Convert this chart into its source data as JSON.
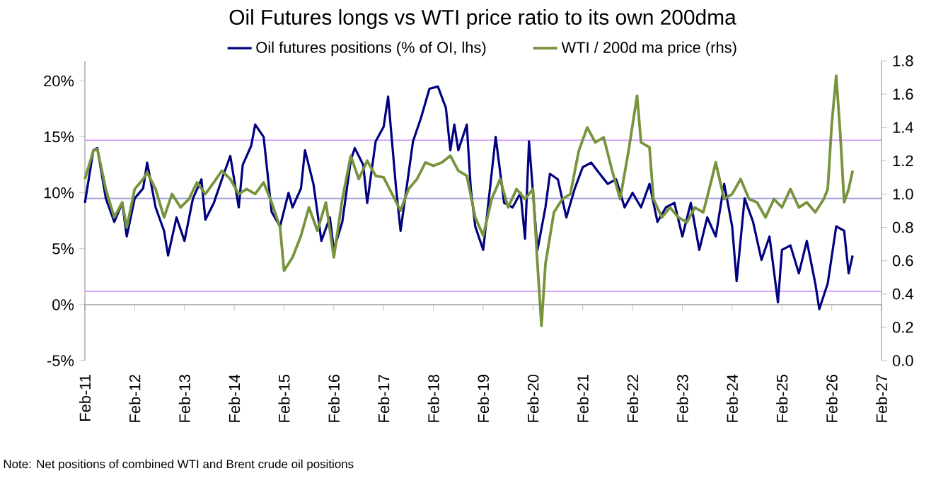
{
  "chart_data": {
    "type": "line",
    "title": "Oil Futures longs vs WTI price ratio to its own 200dma",
    "series": [
      {
        "name": "Oil futures positions (% of OI, lhs)",
        "color": "#000080",
        "x": [
          "2011-02",
          "2011-04",
          "2011-05",
          "2011-07",
          "2011-09",
          "2011-11",
          "2011-12",
          "2012-02",
          "2012-04",
          "2012-05",
          "2012-07",
          "2012-09",
          "2012-10",
          "2012-12",
          "2013-02",
          "2013-04",
          "2013-06",
          "2013-07",
          "2013-09",
          "2013-11",
          "2014-01",
          "2014-03",
          "2014-04",
          "2014-06",
          "2014-07",
          "2014-09",
          "2014-11",
          "2015-01",
          "2015-03",
          "2015-04",
          "2015-06",
          "2015-07",
          "2015-09",
          "2015-11",
          "2016-01",
          "2016-02",
          "2016-04",
          "2016-06",
          "2016-07",
          "2016-09",
          "2016-10",
          "2016-12",
          "2017-02",
          "2017-03",
          "2017-05",
          "2017-06",
          "2017-08",
          "2017-09",
          "2017-11",
          "2018-01",
          "2018-03",
          "2018-05",
          "2018-06",
          "2018-07",
          "2018-08",
          "2018-10",
          "2018-11",
          "2018-12",
          "2019-02",
          "2019-05",
          "2019-07",
          "2019-09",
          "2019-11",
          "2019-12",
          "2020-01",
          "2020-03",
          "2020-05",
          "2020-06",
          "2020-08",
          "2020-10",
          "2020-12",
          "2021-02",
          "2021-04",
          "2021-06",
          "2021-08",
          "2021-10",
          "2021-12",
          "2022-02",
          "2022-04",
          "2022-06",
          "2022-08",
          "2022-10",
          "2022-12",
          "2023-02",
          "2023-04",
          "2023-06",
          "2023-08",
          "2023-10",
          "2023-12",
          "2024-02",
          "2024-03",
          "2024-05",
          "2024-07",
          "2024-09",
          "2024-11",
          "2025-01",
          "2025-02",
          "2025-04",
          "2025-06",
          "2025-08",
          "2025-10",
          "2025-11",
          "2026-01",
          "2026-03",
          "2026-05",
          "2026-06",
          "2026-07"
        ],
        "values": [
          9.1,
          13.8,
          14,
          9.5,
          7.4,
          9.1,
          6.1,
          9.5,
          10.4,
          12.7,
          8.7,
          6.6,
          4.4,
          7.8,
          5.7,
          9.5,
          11.2,
          7.6,
          9.1,
          11.2,
          13.3,
          8.7,
          12.5,
          14.2,
          16.1,
          15,
          8.3,
          7.0,
          10,
          8.7,
          10.4,
          13.8,
          10.8,
          5.7,
          7.8,
          4.9,
          7.4,
          12.9,
          14,
          12.5,
          9.1,
          14.6,
          15.9,
          18.6,
          10.4,
          6.6,
          11.7,
          14.6,
          16.7,
          19.3,
          19.5,
          17.6,
          13.8,
          16.1,
          13.8,
          16.1,
          10.4,
          7.0,
          4.9,
          15,
          9.1,
          8.7,
          10,
          5.9,
          14.6,
          4.9,
          8.7,
          11.7,
          11.2,
          7.8,
          10.4,
          12.3,
          12.7,
          11.7,
          10.8,
          11.2,
          8.7,
          10,
          8.7,
          10.8,
          7.4,
          8.7,
          9.1,
          6.1,
          9.1,
          4.9,
          7.8,
          6.1,
          10.8,
          7.0,
          2.1,
          9.5,
          7.4,
          4.0,
          6.1,
          0.2,
          4.9,
          5.3,
          2.8,
          5.7,
          1.9,
          -0.4,
          1.9,
          7.0,
          6.6,
          2.8,
          4.4
        ]
      },
      {
        "name": "WTI / 200d ma price (rhs)",
        "color": "#77933c",
        "axis": "y2",
        "x": [
          "2011-02",
          "2011-04",
          "2011-05",
          "2011-07",
          "2011-09",
          "2011-11",
          "2011-12",
          "2012-02",
          "2012-04",
          "2012-05",
          "2012-07",
          "2012-09",
          "2012-11",
          "2013-01",
          "2013-03",
          "2013-05",
          "2013-07",
          "2013-09",
          "2013-11",
          "2014-01",
          "2014-03",
          "2014-05",
          "2014-07",
          "2014-09",
          "2014-11",
          "2015-01",
          "2015-02",
          "2015-04",
          "2015-06",
          "2015-08",
          "2015-10",
          "2015-12",
          "2016-02",
          "2016-04",
          "2016-06",
          "2016-08",
          "2016-10",
          "2016-12",
          "2017-02",
          "2017-04",
          "2017-06",
          "2017-08",
          "2017-10",
          "2017-12",
          "2018-02",
          "2018-04",
          "2018-06",
          "2018-08",
          "2018-10",
          "2018-12",
          "2019-02",
          "2019-04",
          "2019-06",
          "2019-08",
          "2019-10",
          "2019-12",
          "2020-02",
          "2020-03",
          "2020-04",
          "2020-05",
          "2020-07",
          "2020-09",
          "2020-11",
          "2021-01",
          "2021-03",
          "2021-05",
          "2021-07",
          "2021-09",
          "2021-11",
          "2022-01",
          "2022-03",
          "2022-04",
          "2022-06",
          "2022-07",
          "2022-09",
          "2022-11",
          "2023-01",
          "2023-03",
          "2023-05",
          "2023-07",
          "2023-09",
          "2023-10",
          "2023-12",
          "2024-02",
          "2024-04",
          "2024-06",
          "2024-08",
          "2024-10",
          "2024-12",
          "2025-02",
          "2025-04",
          "2025-06",
          "2025-08",
          "2025-10",
          "2025-12",
          "2026-01",
          "2026-02",
          "2026-03",
          "2026-04",
          "2026-05",
          "2026-06",
          "2026-07"
        ],
        "values": [
          1.09,
          1.26,
          1.27,
          1.03,
          0.86,
          0.95,
          0.8,
          1.03,
          1.09,
          1.13,
          1.03,
          0.86,
          1.0,
          0.92,
          0.97,
          1.07,
          1.0,
          1.07,
          1.14,
          1.09,
          1.0,
          1.03,
          1.0,
          1.07,
          0.95,
          0.8,
          0.54,
          0.62,
          0.75,
          0.92,
          0.78,
          0.95,
          0.62,
          0.97,
          1.23,
          1.09,
          1.2,
          1.11,
          1.1,
          1.0,
          0.9,
          1.03,
          1.09,
          1.19,
          1.17,
          1.19,
          1.23,
          1.14,
          1.11,
          0.86,
          0.75,
          0.97,
          1.09,
          0.92,
          1.03,
          0.97,
          1.03,
          0.58,
          0.21,
          0.58,
          0.89,
          0.97,
          1.0,
          1.26,
          1.4,
          1.31,
          1.34,
          1.14,
          0.97,
          1.26,
          1.59,
          1.31,
          1.28,
          0.97,
          0.86,
          0.92,
          0.86,
          0.83,
          0.92,
          0.89,
          1.09,
          1.19,
          0.97,
          1.0,
          1.09,
          0.97,
          0.95,
          0.86,
          0.97,
          0.92,
          1.03,
          0.92,
          0.95,
          0.89,
          0.97,
          1.03,
          1.42,
          1.71,
          1.37,
          0.95,
          1.03,
          1.14
        ]
      }
    ],
    "xlim": [
      "2011-02",
      "2027-02"
    ],
    "xticks": [
      {
        "value": "2011-02",
        "label": "Feb-11"
      },
      {
        "value": "2012-02",
        "label": "Feb-12"
      },
      {
        "value": "2013-02",
        "label": "Feb-13"
      },
      {
        "value": "2014-02",
        "label": "Feb-14"
      },
      {
        "value": "2015-02",
        "label": "Feb-15"
      },
      {
        "value": "2016-02",
        "label": "Feb-16"
      },
      {
        "value": "2017-02",
        "label": "Feb-17"
      },
      {
        "value": "2018-02",
        "label": "Feb-18"
      },
      {
        "value": "2019-02",
        "label": "Feb-19"
      },
      {
        "value": "2020-02",
        "label": "Feb-20"
      },
      {
        "value": "2021-02",
        "label": "Feb-21"
      },
      {
        "value": "2022-02",
        "label": "Feb-22"
      },
      {
        "value": "2023-02",
        "label": "Feb-23"
      },
      {
        "value": "2024-02",
        "label": "Feb-24"
      },
      {
        "value": "2025-02",
        "label": "Feb-25"
      },
      {
        "value": "2026-02",
        "label": "Feb-26"
      },
      {
        "value": "2027-02",
        "label": "Feb-27"
      }
    ],
    "ylim": [
      -5,
      21.8
    ],
    "yticks": [
      {
        "value": -5,
        "label": "-5%"
      },
      {
        "value": 0,
        "label": "0%"
      },
      {
        "value": 5,
        "label": "5%"
      },
      {
        "value": 10,
        "label": "10%"
      },
      {
        "value": 15,
        "label": "15%"
      },
      {
        "value": 20,
        "label": "20%"
      }
    ],
    "y2lim": [
      0,
      1.8
    ],
    "y2ticks": [
      {
        "value": 0,
        "label": "0.0"
      },
      {
        "value": 0.2,
        "label": "0.2"
      },
      {
        "value": 0.4,
        "label": "0.4"
      },
      {
        "value": 0.6,
        "label": "0.6"
      },
      {
        "value": 0.8,
        "label": "0.8"
      },
      {
        "value": 1.0,
        "label": "1.0"
      },
      {
        "value": 1.2,
        "label": "1.2"
      },
      {
        "value": 1.4,
        "label": "1.4"
      },
      {
        "value": 1.6,
        "label": "1.6"
      },
      {
        "value": 1.8,
        "label": "1.8"
      }
    ],
    "ref_lines": [
      {
        "axis": "y",
        "value": 14.7,
        "color": "#cc99ff"
      },
      {
        "axis": "y",
        "value": 9.5,
        "color": "#9999dd"
      },
      {
        "axis": "y",
        "value": 1.2,
        "color": "#cc99ff"
      }
    ],
    "legend": "top",
    "annotations": [
      "Note: Net positions of combined WTI and Brent crude oil positions"
    ]
  }
}
